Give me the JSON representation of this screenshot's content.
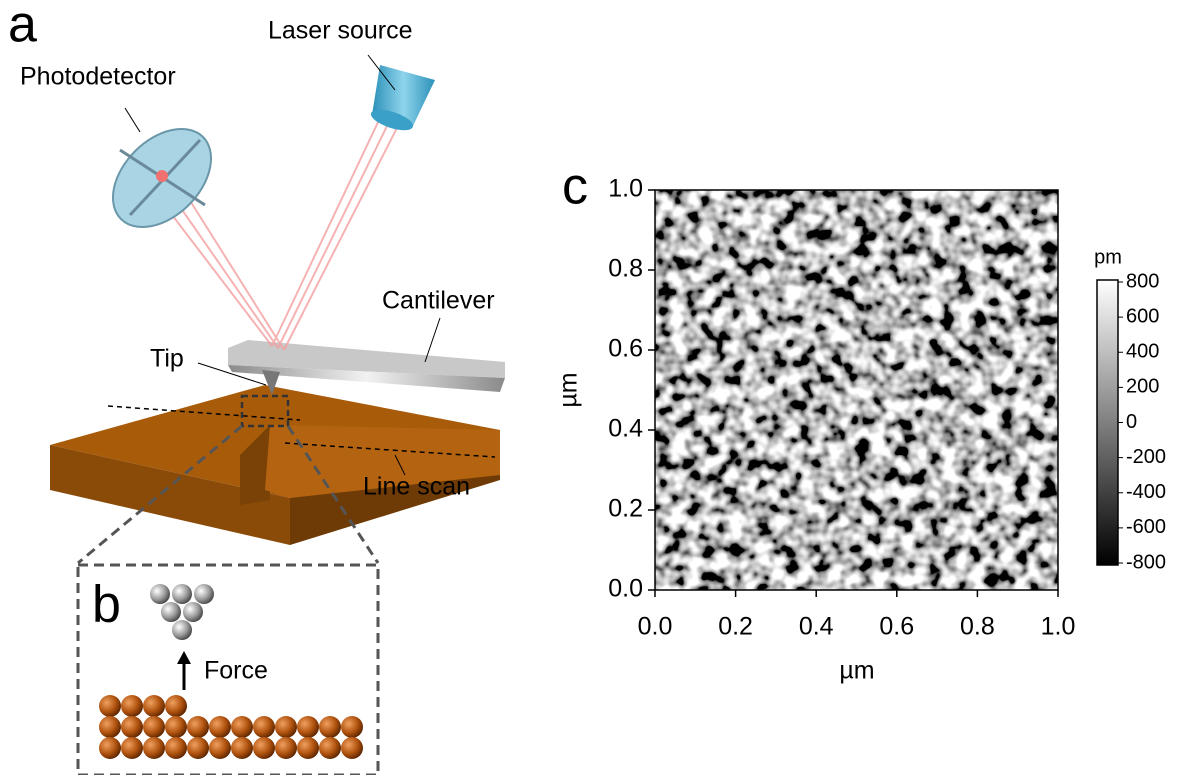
{
  "panels": {
    "a": {
      "label": "a",
      "photodetector": "Photodetector",
      "laser": "Laser source",
      "cantilever": "Cantilever",
      "tip": "Tip",
      "line_scan": "Line scan"
    },
    "b": {
      "label": "b",
      "force": "Force"
    }
  },
  "chart_data": {
    "type": "heatmap",
    "label": "c",
    "xlabel": "µm",
    "ylabel": "µm",
    "xlim": [
      0,
      1
    ],
    "ylim": [
      0,
      1
    ],
    "xticks": [
      {
        "value": 0,
        "label": "0.0"
      },
      0.2,
      0.4,
      0.6,
      0.8,
      {
        "value": 1,
        "label": "1.0"
      }
    ],
    "yticks": [
      {
        "value": 0,
        "label": "0.0"
      },
      0.2,
      0.4,
      0.6,
      0.8,
      {
        "value": 1,
        "label": "1.0"
      }
    ],
    "colorbar": {
      "unit": "pm",
      "lim": [
        -800,
        800
      ],
      "ticks": [
        800,
        600,
        400,
        200,
        0,
        -200,
        -400,
        -600,
        -800
      ]
    }
  }
}
